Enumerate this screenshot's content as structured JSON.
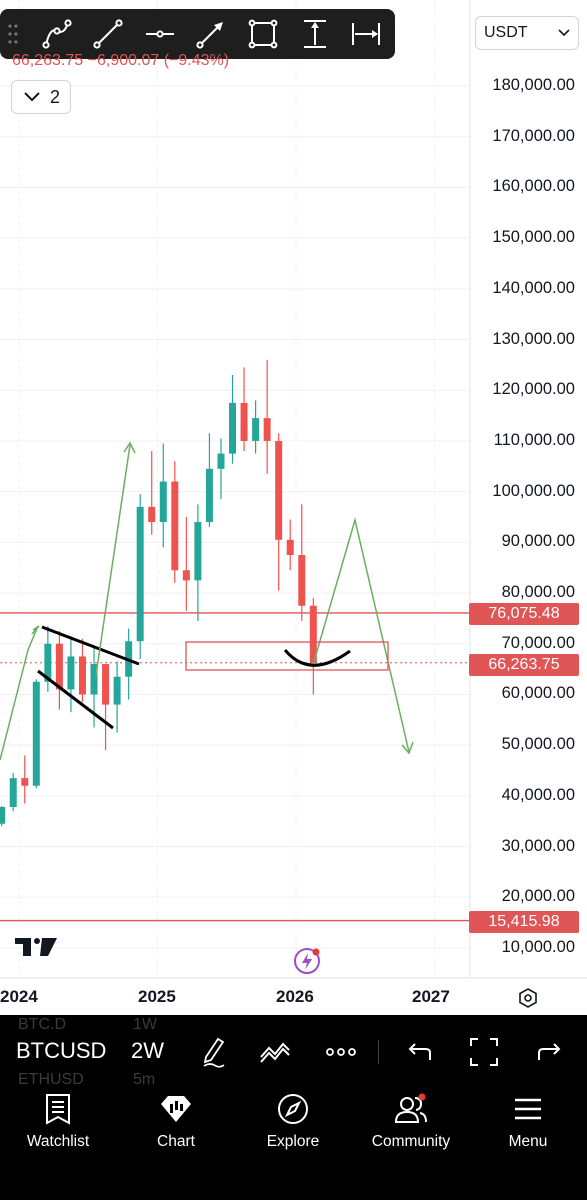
{
  "toolbar": {
    "tools": [
      "path-tool-icon",
      "trend-line-icon",
      "horizontal-ray-icon",
      "arrow-tool-icon",
      "rectangle-icon",
      "price-range-icon",
      "date-range-icon"
    ]
  },
  "header": {
    "currency": "USDT",
    "change_text": "66,263.75 −6,900.07 (−9.43%)",
    "layers_count": "2"
  },
  "price_axis": {
    "labels": [
      "180,000.00",
      "170,000.00",
      "160,000.00",
      "150,000.00",
      "140,000.00",
      "130,000.00",
      "120,000.00",
      "110,000.00",
      "100,000.00",
      "90,000.00",
      "80,000.00",
      "70,000.00",
      "60,000.00",
      "50,000.00",
      "40,000.00",
      "30,000.00",
      "20,000.00",
      "10,000.00"
    ],
    "tags": [
      {
        "value": "76,075.48",
        "kind": "horizontal-line"
      },
      {
        "value": "66,263.75",
        "kind": "last-price"
      },
      {
        "value": "15,415.98",
        "kind": "horizontal-line"
      }
    ]
  },
  "time_axis": {
    "labels": [
      "2024",
      "2025",
      "2026",
      "2027"
    ]
  },
  "chart_data": {
    "type": "candlestick",
    "symbol": "BTCUSD",
    "interval": "2W",
    "ylim": [
      8000,
      185000
    ],
    "y_scale": "linear",
    "grid": true,
    "last_price": 66263.75,
    "horizontal_lines": [
      76075.48,
      15415.98
    ],
    "zone_box": {
      "from": "2025-04",
      "to": "2026-09",
      "low": 64500,
      "high": 71000
    },
    "candles": [
      {
        "t": "2023-09",
        "o": 26000,
        "h": 27500,
        "l": 25000,
        "c": 27000
      },
      {
        "t": "2023-10",
        "o": 27000,
        "h": 35000,
        "l": 26500,
        "c": 34500
      },
      {
        "t": "2023-11",
        "o": 34500,
        "h": 38000,
        "l": 34000,
        "c": 37800
      },
      {
        "t": "2023-12",
        "o": 37800,
        "h": 44500,
        "l": 37000,
        "c": 43500
      },
      {
        "t": "2024-01",
        "o": 43500,
        "h": 48000,
        "l": 38500,
        "c": 42000
      },
      {
        "t": "2024-02",
        "o": 42000,
        "h": 63000,
        "l": 41500,
        "c": 62500
      },
      {
        "t": "2024-03",
        "o": 62500,
        "h": 73500,
        "l": 60500,
        "c": 70000
      },
      {
        "t": "2024-04",
        "o": 70000,
        "h": 72500,
        "l": 57000,
        "c": 61000
      },
      {
        "t": "2024-05",
        "o": 61000,
        "h": 71500,
        "l": 56500,
        "c": 67500
      },
      {
        "t": "2024-06",
        "o": 67500,
        "h": 71000,
        "l": 58500,
        "c": 60000
      },
      {
        "t": "2024-07",
        "o": 60000,
        "h": 69500,
        "l": 53500,
        "c": 66000
      },
      {
        "t": "2024-08",
        "o": 66000,
        "h": 65000,
        "l": 49000,
        "c": 58000
      },
      {
        "t": "2024-09",
        "o": 58000,
        "h": 66500,
        "l": 52500,
        "c": 63500
      },
      {
        "t": "2024-10",
        "o": 63500,
        "h": 73000,
        "l": 59000,
        "c": 70500
      },
      {
        "t": "2024-11",
        "o": 70500,
        "h": 99500,
        "l": 67000,
        "c": 97000
      },
      {
        "t": "2024-12",
        "o": 97000,
        "h": 108000,
        "l": 91500,
        "c": 94000
      },
      {
        "t": "2025-01",
        "o": 94000,
        "h": 109500,
        "l": 89000,
        "c": 102000
      },
      {
        "t": "2025-02",
        "o": 102000,
        "h": 106000,
        "l": 82000,
        "c": 84500
      },
      {
        "t": "2025-03",
        "o": 84500,
        "h": 95000,
        "l": 76500,
        "c": 82500
      },
      {
        "t": "2025-04",
        "o": 82500,
        "h": 97500,
        "l": 74500,
        "c": 94000
      },
      {
        "t": "2025-05",
        "o": 94000,
        "h": 111500,
        "l": 93000,
        "c": 104500
      },
      {
        "t": "2025-06",
        "o": 104500,
        "h": 110500,
        "l": 98500,
        "c": 107500
      },
      {
        "t": "2025-07",
        "o": 107500,
        "h": 123000,
        "l": 105500,
        "c": 117500
      },
      {
        "t": "2025-08",
        "o": 117500,
        "h": 124500,
        "l": 108000,
        "c": 110000
      },
      {
        "t": "2025-09",
        "o": 110000,
        "h": 118000,
        "l": 107500,
        "c": 114500
      },
      {
        "t": "2025-10",
        "o": 114500,
        "h": 126000,
        "l": 103500,
        "c": 110000
      },
      {
        "t": "2025-11",
        "o": 110000,
        "h": 111500,
        "l": 80500,
        "c": 90500
      },
      {
        "t": "2025-12",
        "o": 90500,
        "h": 94500,
        "l": 84500,
        "c": 87500
      },
      {
        "t": "2026-01",
        "o": 87500,
        "h": 97500,
        "l": 74500,
        "c": 77500
      },
      {
        "t": "2026-02",
        "o": 77500,
        "h": 79000,
        "l": 60000,
        "c": 66263.75
      }
    ]
  },
  "symbol_bar": {
    "symbol": "BTCUSD",
    "interval": "2W",
    "ghost_symbols": [
      "BTC.D",
      "ETHUSD"
    ],
    "ghost_intervals": [
      "1W",
      "5m"
    ]
  },
  "bottom_nav": {
    "items": [
      {
        "label": "Watchlist",
        "icon": "watchlist-icon"
      },
      {
        "label": "Chart",
        "icon": "chart-icon"
      },
      {
        "label": "Explore",
        "icon": "compass-icon"
      },
      {
        "label": "Community",
        "icon": "community-icon"
      },
      {
        "label": "Menu",
        "icon": "hamburger-icon"
      }
    ]
  },
  "colors": {
    "up": "#26a69a",
    "down": "#ef5350",
    "annotation_green": "#6aaf5f",
    "line_red": "#e05555",
    "grid": "#eef0f3"
  }
}
